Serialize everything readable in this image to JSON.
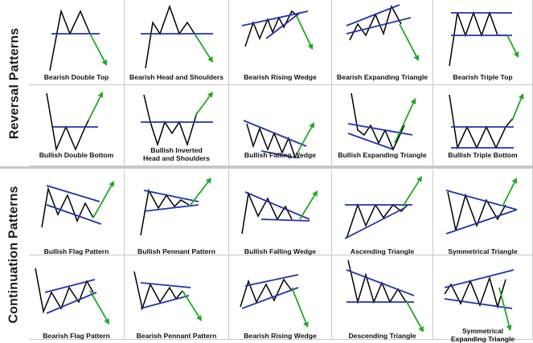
{
  "side_labels": {
    "reversal": "Reversal Patterns",
    "continuation": "Continuation Patterns"
  },
  "colors": {
    "price_line": "#000000",
    "trend_line": "#2233aa",
    "arrow": "#22a822",
    "grid_border": "#c8c8c8"
  },
  "patterns": [
    {
      "label": "Bearish Double Top",
      "lines": [
        "Bearish Double Top"
      ]
    },
    {
      "label": "Bearish Head and Shoulders",
      "lines": [
        "Bearish Head and Shoulders"
      ]
    },
    {
      "label": "Bearish Rising Wedge",
      "lines": [
        "Bearish Rising Wedge"
      ]
    },
    {
      "label": "Bearish Expanding Triangle",
      "lines": [
        "Bearish Expanding Triangle"
      ]
    },
    {
      "label": "Bearish Triple Top",
      "lines": [
        "Bearish Triple Top"
      ]
    },
    {
      "label": "Bullish Double Bottom",
      "lines": [
        "Bullish Double Bottom"
      ]
    },
    {
      "label": "Bullish Inverted Head and Shoulders",
      "lines": [
        "Bullish Inverted",
        "Head and Shoulders"
      ]
    },
    {
      "label": "Bullish Falling Wedge",
      "lines": [
        "Bullish Falling Wedge"
      ]
    },
    {
      "label": "Bullish Expanding Triangle",
      "lines": [
        "Bullish Expanding Triangle"
      ]
    },
    {
      "label": "Bullish Triple Bottom",
      "lines": [
        "Bullish Triple Bottom"
      ]
    },
    {
      "label": "Bullish Flag Pattern",
      "lines": [
        "Bullish Flag Pattern"
      ]
    },
    {
      "label": "Bullish Pennant Pattern",
      "lines": [
        "Bullish Pennant Pattern"
      ]
    },
    {
      "label": "Bullish Falling Wedge",
      "lines": [
        "Bullish Falling Wedge"
      ]
    },
    {
      "label": "Ascending Triangle",
      "lines": [
        "Ascending Triangle"
      ]
    },
    {
      "label": "Symmetrical Triangle",
      "lines": [
        "Symmetrical Triangle"
      ]
    },
    {
      "label": "Bearish Flag Pattern",
      "lines": [
        "Bearish Flag Pattern"
      ]
    },
    {
      "label": "Bearish Pennant Pattern",
      "lines": [
        "Bearish Pennant Pattern"
      ]
    },
    {
      "label": "Bearish Rising Wedge",
      "lines": [
        "Bearish Rising Wedge"
      ]
    },
    {
      "label": "Descending Triangle",
      "lines": [
        "Descending Triangle"
      ]
    },
    {
      "label": "Symmetrical Expanding Triangle",
      "lines": [
        "Symmetrical",
        "Expanding Triangle"
      ]
    }
  ]
}
